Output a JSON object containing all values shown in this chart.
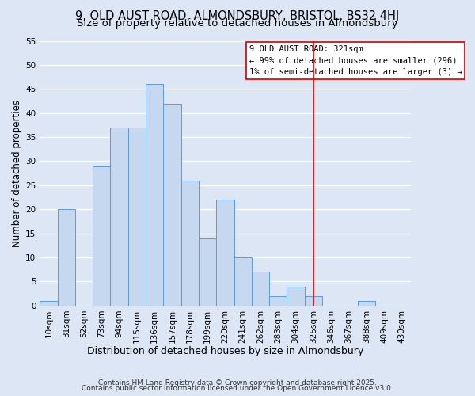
{
  "title": "9, OLD AUST ROAD, ALMONDSBURY, BRISTOL, BS32 4HJ",
  "subtitle": "Size of property relative to detached houses in Almondsbury",
  "xlabel": "Distribution of detached houses by size in Almondsbury",
  "ylabel": "Number of detached properties",
  "bar_labels": [
    "10sqm",
    "31sqm",
    "52sqm",
    "73sqm",
    "94sqm",
    "115sqm",
    "136sqm",
    "157sqm",
    "178sqm",
    "199sqm",
    "220sqm",
    "241sqm",
    "262sqm",
    "283sqm",
    "304sqm",
    "325sqm",
    "346sqm",
    "367sqm",
    "388sqm",
    "409sqm",
    "430sqm"
  ],
  "bar_values": [
    1,
    20,
    0,
    29,
    37,
    37,
    46,
    42,
    26,
    14,
    22,
    10,
    7,
    2,
    4,
    2,
    0,
    0,
    1,
    0,
    0
  ],
  "bar_color": "#c5d8f0",
  "bar_edge_color": "#5b9bd5",
  "background_color": "#dce6f5",
  "plot_bg_color": "#dce6f5",
  "grid_color": "#ffffff",
  "vline_x": 15.0,
  "vline_color": "#cc0000",
  "ylim": [
    0,
    55
  ],
  "yticks": [
    0,
    5,
    10,
    15,
    20,
    25,
    30,
    35,
    40,
    45,
    50,
    55
  ],
  "annotation_title": "9 OLD AUST ROAD: 321sqm",
  "annotation_line1": "← 99% of detached houses are smaller (296)",
  "annotation_line2": "1% of semi-detached houses are larger (3) →",
  "footer1": "Contains HM Land Registry data © Crown copyright and database right 2025.",
  "footer2": "Contains public sector information licensed under the Open Government Licence v3.0.",
  "title_fontsize": 10.5,
  "subtitle_fontsize": 9.5,
  "xlabel_fontsize": 9,
  "ylabel_fontsize": 8.5,
  "tick_fontsize": 7.5,
  "annotation_fontsize": 7.5,
  "footer_fontsize": 6.5
}
